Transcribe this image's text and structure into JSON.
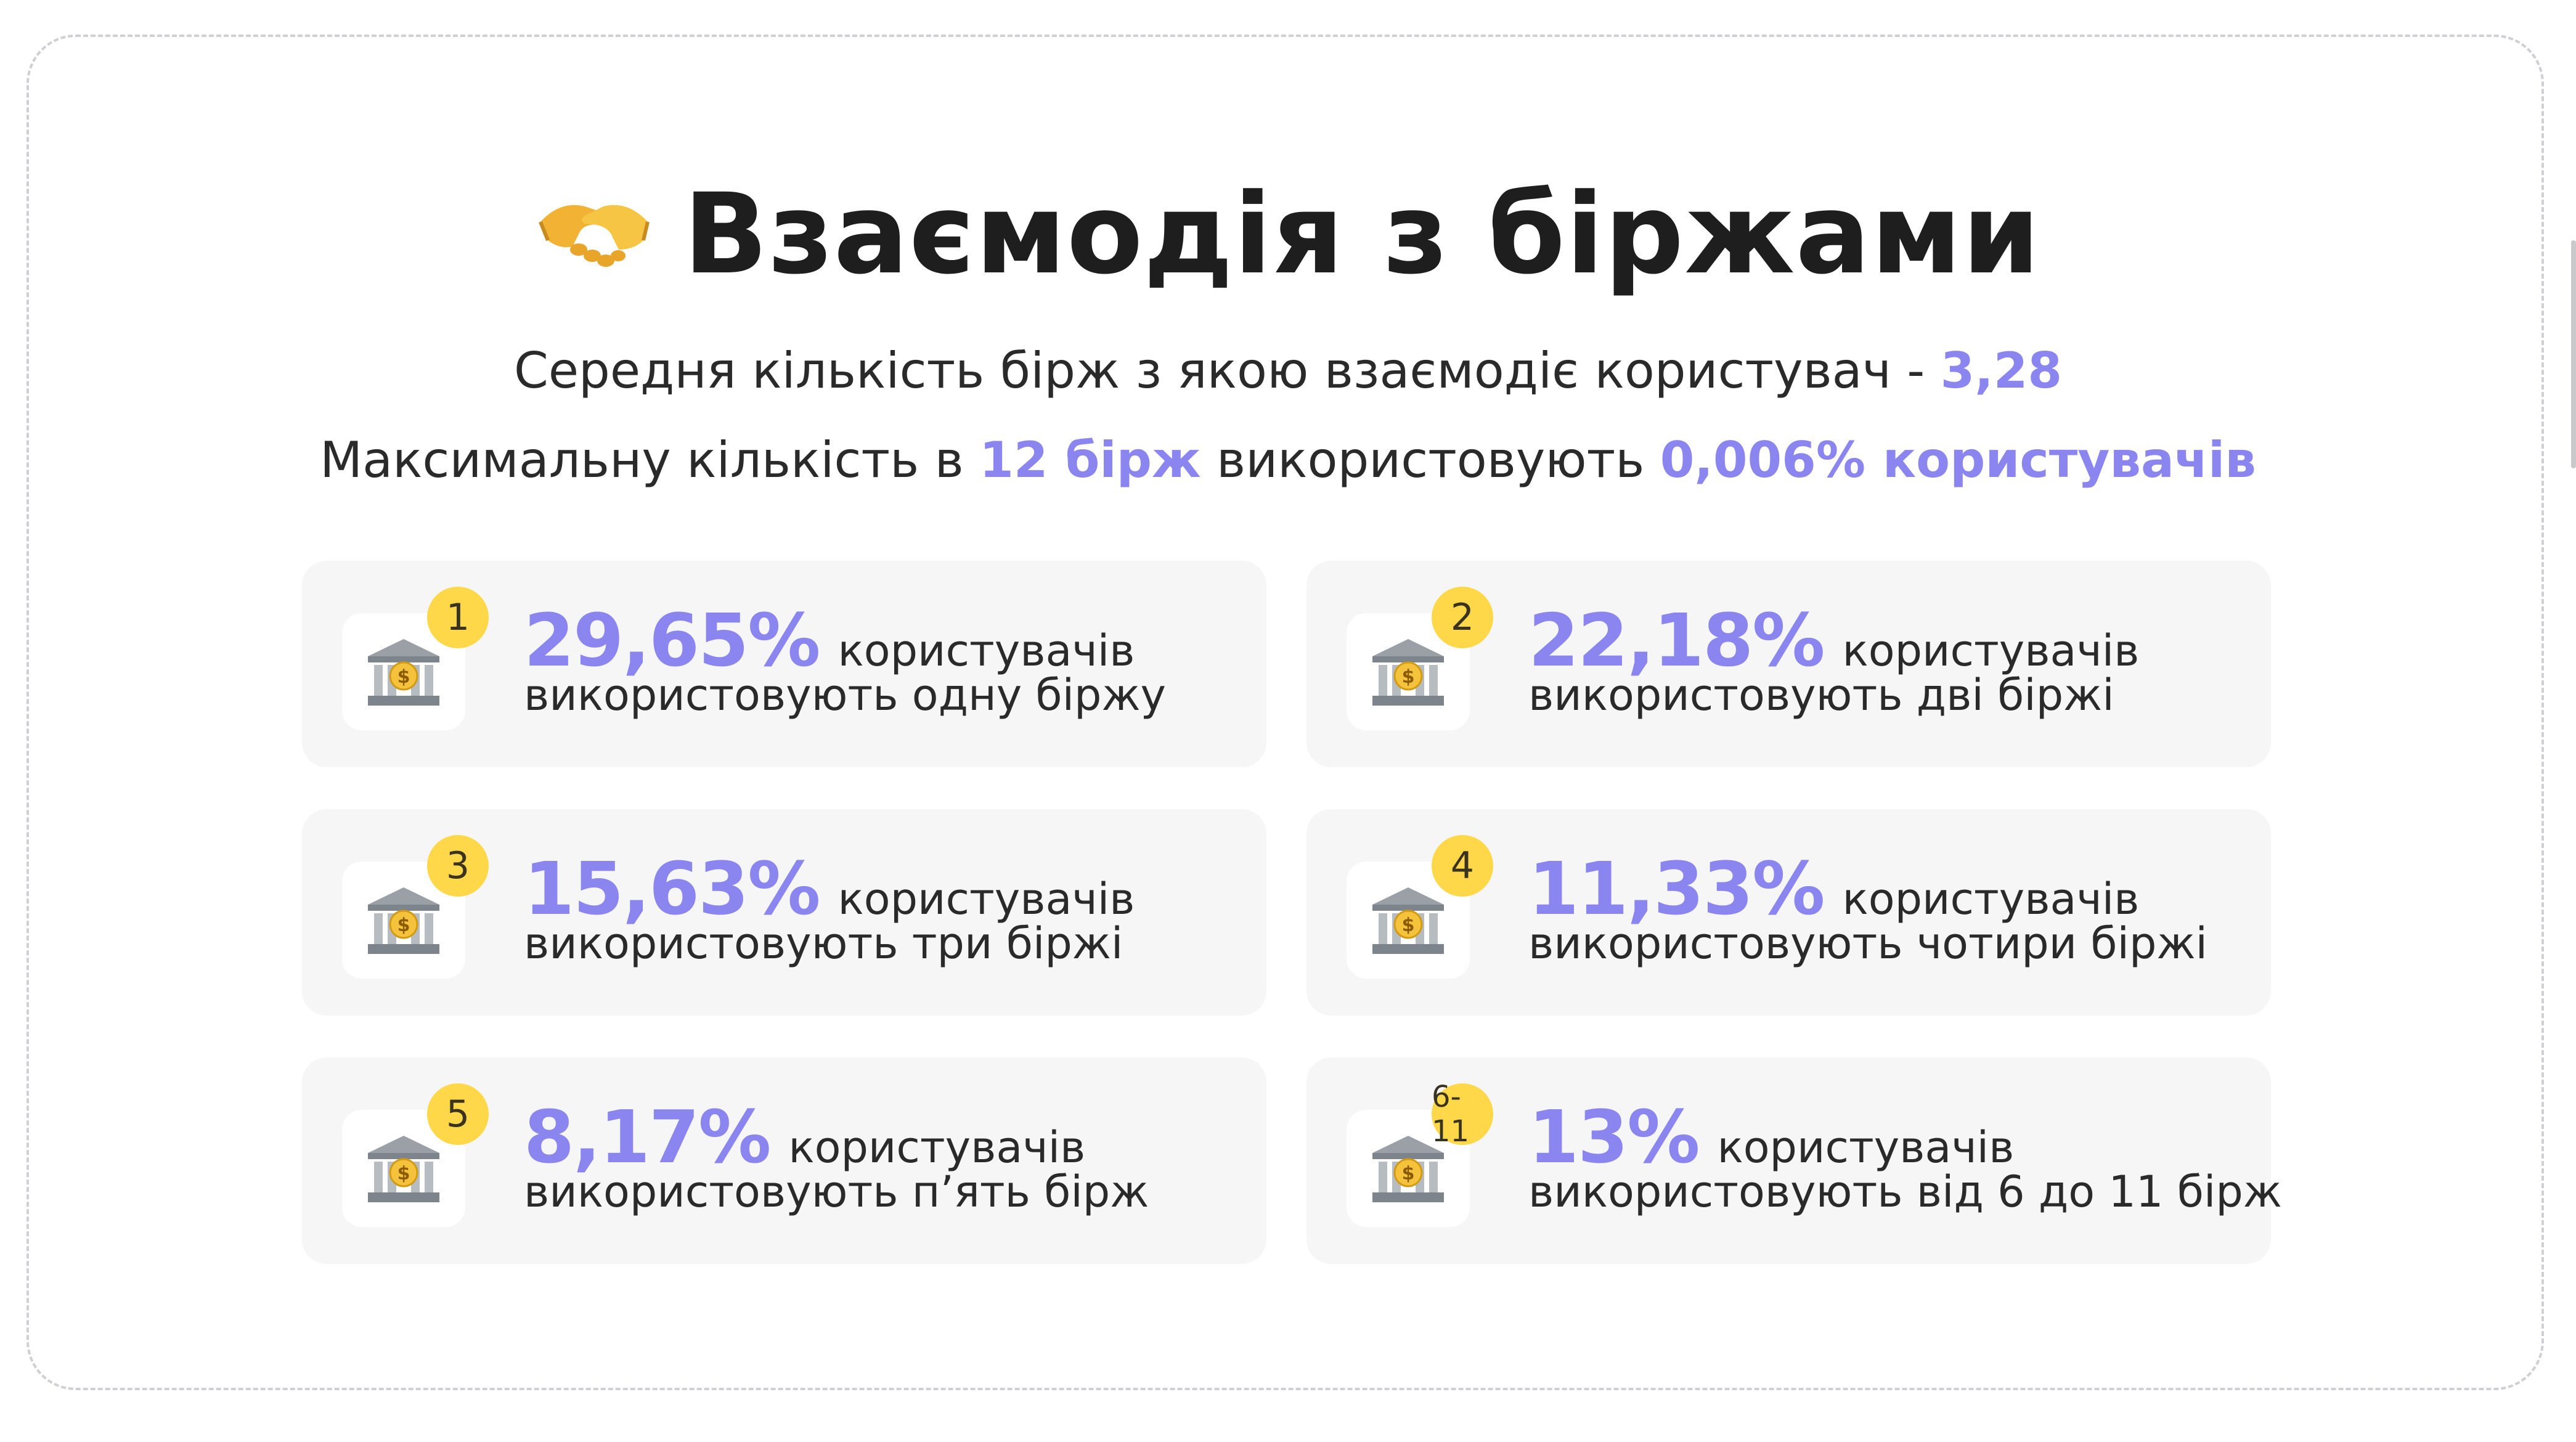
{
  "title": "Взаємодія з біржами",
  "title_icon": "handshake-icon",
  "subtitle_1": {
    "text": "Середня кількість бірж з якою взаємодіє користувач - ",
    "value": "3,28"
  },
  "subtitle_2": {
    "prefix": "Максимальну кількість в ",
    "highlight_1": "12 бірж",
    "middle": " використовують ",
    "highlight_2": "0,006% користувачів"
  },
  "accent_color": "#8b85f0",
  "badge_color": "#ffd84a",
  "card_icon": "bank-icon",
  "cards": [
    {
      "badge": "1",
      "percent": "29,65%",
      "users": "користувачів",
      "description": "використовують одну біржу"
    },
    {
      "badge": "2",
      "percent": "22,18%",
      "users": "користувачів",
      "description": "використовують дві біржі"
    },
    {
      "badge": "3",
      "percent": "15,63%",
      "users": "користувачів",
      "description": "використовують три біржі"
    },
    {
      "badge": "4",
      "percent": "11,33%",
      "users": "користувачів",
      "description": "використовують чотири біржі"
    },
    {
      "badge": "5",
      "percent": "8,17%",
      "users": "користувачів",
      "description": "використовують п’ять бірж"
    },
    {
      "badge": "6-11",
      "percent": "13%",
      "users": "користувачів",
      "description": "використовують від 6 до 11 бірж"
    }
  ]
}
